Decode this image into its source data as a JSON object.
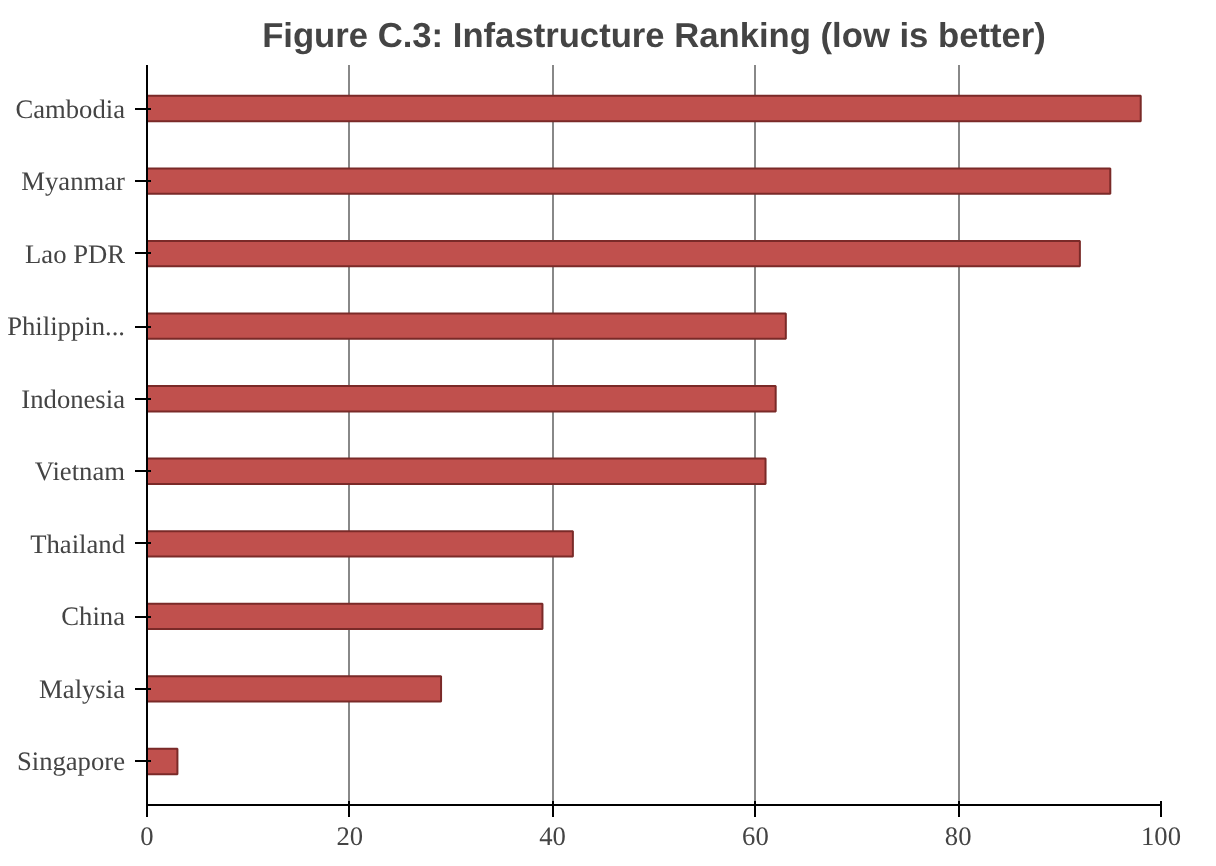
{
  "chart_data": {
    "type": "bar",
    "orientation": "horizontal",
    "title": "Figure C.3: Infastructure Ranking (low is better)",
    "categories": [
      "Cambodia",
      "Myanmar",
      "Lao PDR",
      "Philippin...",
      "Indonesia",
      "Vietnam",
      "Thailand",
      "China",
      "Malysia",
      "Singapore"
    ],
    "values": [
      98,
      95,
      92,
      63,
      62,
      61,
      42,
      39,
      29,
      3
    ],
    "color": "#c0504d",
    "xlim": [
      0,
      100
    ],
    "xticks": [
      0,
      20,
      40,
      60,
      80,
      100
    ],
    "grid": "x"
  }
}
